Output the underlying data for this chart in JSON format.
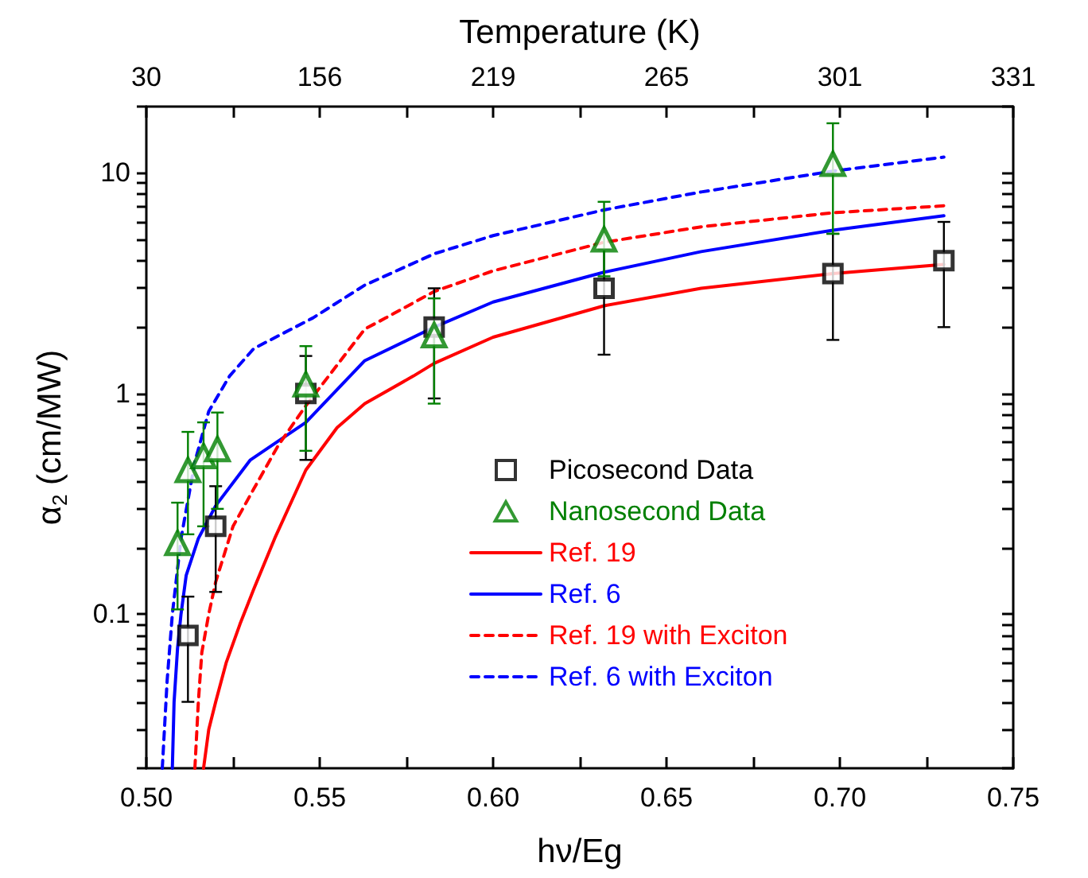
{
  "chart_data": {
    "type": "scatter",
    "xlabel": "hν/Eg",
    "ylabel": "α$_{2}$ (cm/MW)",
    "x2label": "Temperature (K)",
    "log": "y",
    "grid": false,
    "legend": "bottom right",
    "xlim": [
      0.5,
      0.75
    ],
    "xticks": [
      {
        "value": 0.5,
        "label": "0.50"
      },
      {
        "value": 0.525,
        "label": null
      },
      {
        "value": 0.55,
        "label": "0.55"
      },
      {
        "value": 0.575,
        "label": null
      },
      {
        "value": 0.6,
        "label": "0.60"
      },
      {
        "value": 0.625,
        "label": null
      },
      {
        "value": 0.65,
        "label": "0.65"
      },
      {
        "value": 0.675,
        "label": null
      },
      {
        "value": 0.7,
        "label": "0.70"
      },
      {
        "value": 0.725,
        "label": null
      },
      {
        "value": 0.75,
        "label": "0.75"
      }
    ],
    "annotations": [
      "30",
      "156",
      "219",
      "265",
      "301",
      "331"
    ],
    "ylim": [
      0.02,
      20
    ],
    "yticks": [
      {
        "value": 0.02,
        "label": null
      },
      {
        "value": 0.03,
        "label": null
      },
      {
        "value": 0.04,
        "label": null
      },
      {
        "value": 0.05,
        "label": null
      },
      {
        "value": 0.06,
        "label": null
      },
      {
        "value": 0.07,
        "label": null
      },
      {
        "value": 0.08,
        "label": null
      },
      {
        "value": 0.09,
        "label": null
      },
      0.1,
      {
        "value": 0.2,
        "label": null
      },
      {
        "value": 0.3,
        "label": null
      },
      {
        "value": 0.4,
        "label": null
      },
      {
        "value": 0.5,
        "label": null
      },
      {
        "value": 0.6,
        "label": null
      },
      {
        "value": 0.7,
        "label": null
      },
      {
        "value": 0.8,
        "label": null
      },
      {
        "value": 0.9,
        "label": null
      },
      1,
      {
        "value": 2,
        "label": null
      },
      {
        "value": 3,
        "label": null
      },
      {
        "value": 4,
        "label": null
      },
      {
        "value": 5,
        "label": null
      },
      {
        "value": 6,
        "label": null
      },
      {
        "value": 7,
        "label": null
      },
      {
        "value": 8,
        "label": null
      },
      {
        "value": 9,
        "label": null
      },
      10,
      {
        "value": 20,
        "label": null
      }
    ],
    "series": [
      {
        "name": "Picosecond Data",
        "marker": "square",
        "color": "#000000",
        "x": [
          0.512,
          0.52,
          0.546,
          0.583,
          0.632,
          0.698,
          0.73
        ],
        "values": [
          0.08,
          0.25,
          1.0,
          2.0,
          3.0,
          3.5,
          4.0
        ],
        "errors": [
          [
            0.04,
            0.12
          ],
          [
            0.126,
            0.38
          ],
          [
            0.5,
            1.48
          ],
          [
            0.95,
            3.0
          ],
          [
            1.5,
            4.5
          ],
          [
            1.75,
            5.3
          ],
          [
            2.0,
            6.0
          ]
        ]
      },
      {
        "name": "Nanosecond Data",
        "marker": "triangle",
        "color": "#008000",
        "x": [
          0.509,
          0.512,
          0.5165,
          0.5205,
          0.546,
          0.583,
          0.632,
          0.698
        ],
        "values": [
          0.21,
          0.45,
          0.52,
          0.56,
          1.1,
          1.84,
          5.0,
          11
        ],
        "errors": [
          [
            0.105,
            0.32
          ],
          [
            0.23,
            0.67
          ],
          [
            0.25,
            0.74
          ],
          [
            0.3,
            0.82
          ],
          [
            0.55,
            1.64
          ],
          [
            0.9,
            2.7
          ],
          [
            3.4,
            7.4
          ],
          [
            5.3,
            16.8
          ]
        ]
      },
      {
        "name": "Ref. 19",
        "type": "line",
        "marker": "none",
        "line_style": "solid",
        "color": "#ff0000",
        "x": [
          0.5165,
          0.518,
          0.52,
          0.523,
          0.527,
          0.531,
          0.537,
          0.546,
          0.555,
          0.563,
          0.577,
          0.583,
          0.6,
          0.632,
          0.66,
          0.698,
          0.73
        ],
        "values": [
          0.02,
          0.03,
          0.04,
          0.06,
          0.09,
          0.13,
          0.22,
          0.45,
          0.7,
          0.9,
          1.2,
          1.37,
          1.8,
          2.5,
          3.0,
          3.5,
          3.85
        ]
      },
      {
        "name": "Ref. 6",
        "type": "line",
        "marker": "none",
        "line_style": "solid",
        "color": "#0000ff",
        "x": [
          0.5075,
          0.508,
          0.509,
          0.51,
          0.5115,
          0.515,
          0.52,
          0.53,
          0.546,
          0.563,
          0.577,
          0.583,
          0.6,
          0.632,
          0.66,
          0.698,
          0.73
        ],
        "values": [
          0.02,
          0.04,
          0.07,
          0.1,
          0.15,
          0.22,
          0.31,
          0.5,
          0.74,
          1.41,
          1.8,
          2.0,
          2.6,
          3.55,
          4.4,
          5.5,
          6.4
        ]
      },
      {
        "name": "Ref. 19 with Exciton",
        "type": "line",
        "marker": "none",
        "line_style": "dashed",
        "color": "#ff0000",
        "x": [
          0.514,
          0.515,
          0.516,
          0.518,
          0.52,
          0.525,
          0.531,
          0.538,
          0.546,
          0.563,
          0.569,
          0.583,
          0.6,
          0.632,
          0.66,
          0.698,
          0.73
        ],
        "values": [
          0.02,
          0.04,
          0.067,
          0.1,
          0.14,
          0.25,
          0.37,
          0.58,
          0.88,
          1.96,
          2.2,
          2.9,
          3.6,
          4.85,
          5.7,
          6.6,
          7.1
        ]
      },
      {
        "name": "Ref. 6 with Exciton",
        "type": "line",
        "marker": "none",
        "line_style": "dashed",
        "color": "#0000ff",
        "x": [
          0.5046,
          0.506,
          0.5075,
          0.51,
          0.514,
          0.518,
          0.524,
          0.531,
          0.548,
          0.563,
          0.583,
          0.6,
          0.632,
          0.66,
          0.698,
          0.73
        ],
        "values": [
          0.02,
          0.05,
          0.1,
          0.22,
          0.49,
          0.83,
          1.2,
          1.6,
          2.2,
          3.1,
          4.3,
          5.2,
          6.8,
          8.2,
          10.2,
          11.8
        ]
      }
    ]
  }
}
